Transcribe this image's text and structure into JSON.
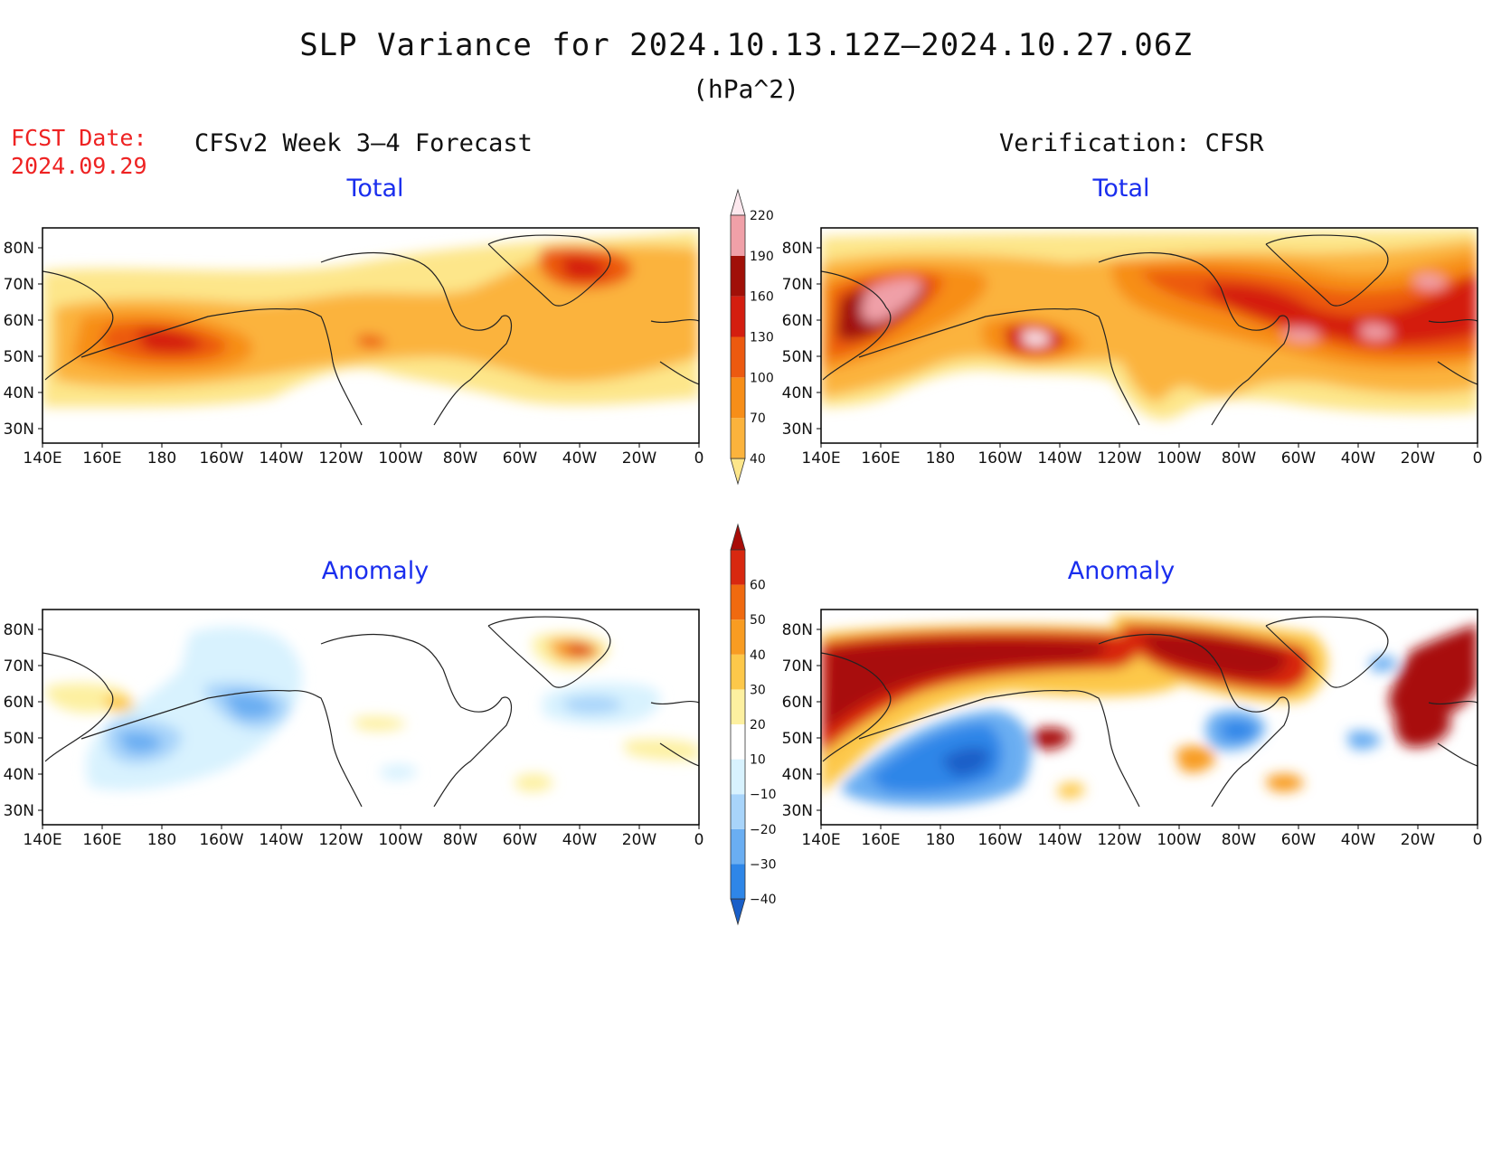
{
  "figure": {
    "title": "SLP Variance for 2024.10.13.12Z–2024.10.27.06Z",
    "units": "(hPa^2)",
    "fcst_label": "FCST Date:",
    "fcst_date": "2024.09.29",
    "left_header": "CFSv2 Week 3–4 Forecast",
    "right_header": "Verification: CFSR"
  },
  "panels": {
    "top_left_title": "Total",
    "top_right_title": "Total",
    "bottom_left_title": "Anomaly",
    "bottom_right_title": "Anomaly"
  },
  "axes": {
    "lon_labels": [
      "140E",
      "160E",
      "180",
      "160W",
      "140W",
      "120W",
      "100W",
      "80W",
      "60W",
      "40W",
      "20W",
      "0"
    ],
    "lat_labels": [
      "80N",
      "70N",
      "60N",
      "50N",
      "40N",
      "30N"
    ]
  },
  "colorbars": {
    "total": {
      "levels": [
        "40",
        "70",
        "100",
        "130",
        "160",
        "190",
        "220"
      ],
      "colors": [
        "#fde68a",
        "#fbb33c",
        "#f78e18",
        "#ec5a10",
        "#d41e10",
        "#a01008",
        "#f0a0a8",
        "#fde8ee"
      ]
    },
    "anomaly": {
      "levels": [
        "−40",
        "−30",
        "−20",
        "−10",
        "10",
        "20",
        "30",
        "40",
        "50",
        "60"
      ],
      "colors": [
        "#1a5fc8",
        "#2e86e8",
        "#6aaef2",
        "#a8d4fa",
        "#d8f2fe",
        "#ffffff",
        "#fdf0a0",
        "#fdc84a",
        "#f89c22",
        "#f06a10",
        "#d82810",
        "#a80c08"
      ]
    }
  },
  "colors": {
    "fcst_date": "#ee2222",
    "panel_title": "#1a2eee"
  }
}
